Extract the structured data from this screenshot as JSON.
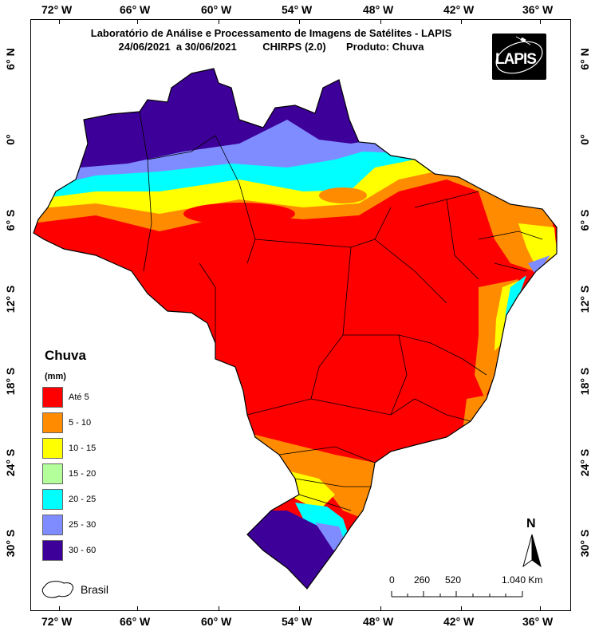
{
  "header": {
    "line1": "Laboratório de Análise e Processamento de Imagens de Satélites - LAPIS",
    "line2": "24/06/2021  a 30/06/2021         CHIRPS (2.0)       Produto: Chuva"
  },
  "logo": {
    "text": "LAPIS"
  },
  "axes": {
    "longitudes": [
      "72° W",
      "66° W",
      "60° W",
      "54° W",
      "48° W",
      "42° W",
      "36° W"
    ],
    "latitudes": [
      "6° N",
      "0°",
      "6° S",
      "12° S",
      "18° S",
      "24° S",
      "30° S"
    ]
  },
  "legend": {
    "title": "Chuva",
    "unit": "(mm)",
    "items": [
      {
        "label": "Até 5",
        "color": "#ff0000"
      },
      {
        "label": "5 - 10",
        "color": "#ff8c00"
      },
      {
        "label": "10 - 15",
        "color": "#ffff00"
      },
      {
        "label": "15 - 20",
        "color": "#b3ff99"
      },
      {
        "label": "20 - 25",
        "color": "#00ffff"
      },
      {
        "label": "25 - 30",
        "color": "#7f8cff"
      },
      {
        "label": "30 - 60",
        "color": "#3d0099"
      }
    ],
    "boundary_label": "Brasil"
  },
  "scale_bar": {
    "labels": [
      "0",
      "260",
      "520",
      "1.040 Km"
    ]
  },
  "north_arrow": {
    "label": "N"
  }
}
